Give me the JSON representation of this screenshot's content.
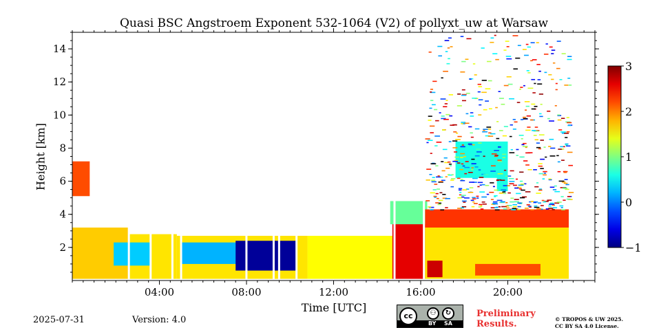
{
  "chart_data": {
    "type": "heatmap",
    "title": "Quasi BSC Angstroem Exponent 532-1064 (V2) of pollyxt_uw at Warsaw",
    "xlabel": "Time [UTC]",
    "ylabel": "Height [km]",
    "xlim_hours": [
      0,
      24
    ],
    "ylim_km": [
      0,
      15
    ],
    "x_tick_labels": [
      "04:00",
      "08:00",
      "12:00",
      "16:00",
      "20:00"
    ],
    "x_tick_hours": [
      4,
      8,
      12,
      16,
      20
    ],
    "y_ticks": [
      2,
      4,
      6,
      8,
      10,
      12,
      14
    ],
    "colorbar": {
      "min": -1,
      "max": 3,
      "ticks": [
        3,
        2,
        1,
        0,
        -1
      ],
      "tick_labels": [
        "3",
        "2",
        "1",
        "0",
        "−1"
      ],
      "colormap": "jet"
    },
    "regions": [
      {
        "t0": 0.0,
        "t1": 0.8,
        "h0": 5.1,
        "h1": 7.2,
        "value": 2.2
      },
      {
        "t0": 0.0,
        "t1": 2.6,
        "h0": 0.1,
        "h1": 3.2,
        "value": 1.7
      },
      {
        "t0": 2.6,
        "t1": 4.8,
        "h0": 0.1,
        "h1": 2.8,
        "value": 1.6
      },
      {
        "t0": 1.9,
        "t1": 3.6,
        "h0": 0.9,
        "h1": 2.3,
        "value": 0.3
      },
      {
        "t0": 4.8,
        "t1": 10.8,
        "h0": 0.1,
        "h1": 2.7,
        "value": 1.6
      },
      {
        "t0": 5.0,
        "t1": 8.3,
        "h0": 1.0,
        "h1": 2.3,
        "value": 0.2
      },
      {
        "t0": 7.5,
        "t1": 10.3,
        "h0": 0.6,
        "h1": 2.4,
        "value": -0.9
      },
      {
        "t0": 10.8,
        "t1": 14.7,
        "h0": 0.1,
        "h1": 2.7,
        "value": 1.5
      },
      {
        "t0": 14.7,
        "t1": 16.2,
        "h0": 0.1,
        "h1": 3.6,
        "value": 2.6
      },
      {
        "t0": 14.6,
        "t1": 16.3,
        "h0": 3.4,
        "h1": 4.8,
        "value": 0.9
      },
      {
        "t0": 16.2,
        "t1": 22.8,
        "h0": 0.1,
        "h1": 3.2,
        "value": 1.6
      },
      {
        "t0": 16.2,
        "t1": 22.8,
        "h0": 3.2,
        "h1": 4.3,
        "value": 2.3
      },
      {
        "t0": 16.3,
        "t1": 17.0,
        "h0": 0.2,
        "h1": 1.2,
        "value": 2.7
      },
      {
        "t0": 18.5,
        "t1": 21.5,
        "h0": 0.3,
        "h1": 1.0,
        "value": 2.2
      },
      {
        "t0": 17.6,
        "t1": 20.0,
        "h0": 6.2,
        "h1": 8.4,
        "value": 0.6
      },
      {
        "t0": 19.5,
        "t1": 20.0,
        "h0": 5.4,
        "h1": 6.4,
        "value": 0.6
      }
    ],
    "noise_area": {
      "t0": 16.2,
      "t1": 22.8,
      "h0": 4.3,
      "h1": 15.0
    },
    "gap_hours": [
      2.55,
      3.55,
      4.55,
      4.95,
      7.95,
      9.2,
      9.45,
      10.25,
      14.75,
      16.1
    ]
  },
  "footer": {
    "date": "2025-07-31",
    "version": "Version: 4.0",
    "cc_badge": {
      "main": "cc",
      "labels": [
        "BY",
        "SA"
      ]
    },
    "preliminary": [
      "Preliminary",
      "Results."
    ],
    "license": [
      "© TROPOS & UW 2025.",
      "CC BY SA 4.0 License."
    ]
  }
}
